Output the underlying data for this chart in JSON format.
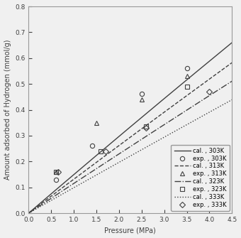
{
  "title": "",
  "xlabel": "Pressure (MPa)",
  "ylabel": "Amount adsorbed of Hydrogen (mmol/g)",
  "xlim": [
    0.0,
    4.5
  ],
  "ylim": [
    0.0,
    0.8
  ],
  "xticks": [
    0.0,
    0.5,
    1.0,
    1.5,
    2.0,
    2.5,
    3.0,
    3.5,
    4.0,
    4.5
  ],
  "yticks": [
    0.0,
    0.1,
    0.2,
    0.3,
    0.4,
    0.5,
    0.6,
    0.7,
    0.8
  ],
  "langmuir_params": {
    "303K": {
      "qm": 30.0,
      "b": 0.005
    },
    "313K": {
      "qm": 30.0,
      "b": 0.0044
    },
    "323K": {
      "qm": 30.0,
      "b": 0.00385
    },
    "333K": {
      "qm": 30.0,
      "b": 0.0033
    }
  },
  "exp_data": {
    "303K": {
      "P": [
        0.6,
        1.4,
        2.5,
        3.5
      ],
      "q": [
        0.13,
        0.26,
        0.462,
        0.56
      ]
    },
    "313K": {
      "P": [
        0.6,
        1.5,
        2.5,
        3.5
      ],
      "q": [
        0.16,
        0.35,
        0.44,
        0.53
      ]
    },
    "323K": {
      "P": [
        0.6,
        1.6,
        2.6,
        3.5
      ],
      "q": [
        0.16,
        0.24,
        0.335,
        0.49
      ]
    },
    "333K": {
      "P": [
        0.65,
        1.7,
        2.6,
        4.0
      ],
      "q": [
        0.16,
        0.24,
        0.33,
        0.47
      ]
    }
  },
  "line_styles": {
    "303K": "-",
    "313K": "--",
    "323K": "-.",
    "333K": ":"
  },
  "marker_styles": {
    "303K": "o",
    "313K": "^",
    "323K": "s",
    "333K": "D"
  },
  "line_color": "#404040",
  "background_color": "#f0f0f0",
  "legend_fontsize": 6.0,
  "axis_fontsize": 7.0,
  "tick_fontsize": 6.5,
  "linewidth": 1.0,
  "markersize": 4.5,
  "markeredgewidth": 0.8
}
